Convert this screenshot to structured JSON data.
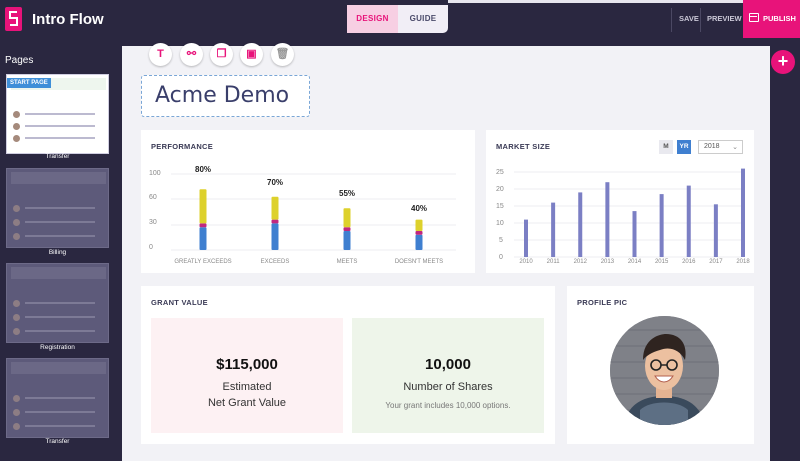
{
  "app": {
    "title": "Intro Flow",
    "mode_tabs": [
      "DESIGN",
      "GUIDE"
    ],
    "actions": {
      "save": "SAVE",
      "preview": "PREVIEW",
      "publish": "PUBLISH"
    },
    "accent_color": "#e8137a"
  },
  "sidebar": {
    "heading": "Pages",
    "start_badge": "START PAGE",
    "pages": [
      {
        "name": "Transfer",
        "active": true
      },
      {
        "name": "Billing",
        "active": false
      },
      {
        "name": "Registration",
        "active": false
      },
      {
        "name": "Transfer",
        "active": false
      }
    ]
  },
  "toolbar": {
    "icons": [
      "text-icon",
      "link-icon",
      "copy-icon",
      "add-image-icon",
      "trash-icon"
    ]
  },
  "canvas": {
    "title": "Acme Demo",
    "add_button": "+"
  },
  "performance": {
    "title": "PERFORMANCE",
    "y_ticks": [
      "100",
      "60",
      "30",
      "0"
    ],
    "categories": [
      "GREATLY EXCEEDS",
      "EXCEEDS",
      "MEETS",
      "DOESN'T MEETS"
    ],
    "labels": [
      "80%",
      "70%",
      "55%",
      "40%"
    ]
  },
  "market": {
    "title": "MARKET SIZE",
    "toggle": [
      "M",
      "YR"
    ],
    "year": "2018",
    "y_ticks": [
      "25",
      "20",
      "15",
      "10",
      "5",
      "0"
    ],
    "years": [
      "2010",
      "2011",
      "2012",
      "2013",
      "2014",
      "2015",
      "2016",
      "2017",
      "2018"
    ]
  },
  "grant": {
    "title": "GRANT VALUE",
    "left": {
      "value": "$115,000",
      "line1": "Estimated",
      "line2": "Net Grant Value"
    },
    "right": {
      "value": "10,000",
      "line1": "Number of Shares",
      "note": "Your grant includes 10,000 options."
    }
  },
  "profile": {
    "title": "PROFILE PIC"
  },
  "chart_data": [
    {
      "type": "bar",
      "title": "PERFORMANCE",
      "categories": [
        "GREATLY EXCEEDS",
        "EXCEEDS",
        "MEETS",
        "DOESN'T MEETS"
      ],
      "ylim": [
        0,
        100
      ],
      "series": [
        {
          "values": [
            30,
            35,
            25,
            20
          ],
          "color": "#3f7fd0"
        },
        {
          "values": [
            5,
            5,
            5,
            5
          ],
          "color": "#c0287f"
        },
        {
          "values": [
            45,
            30,
            25,
            15
          ],
          "color": "#ddd12c"
        }
      ],
      "data_labels": [
        "80%",
        "70%",
        "55%",
        "40%"
      ]
    },
    {
      "type": "bar",
      "title": "MARKET SIZE",
      "categories": [
        "2010",
        "2011",
        "2012",
        "2013",
        "2014",
        "2015",
        "2016",
        "2017",
        "2018"
      ],
      "values": [
        11,
        16,
        19,
        22,
        13.5,
        18.5,
        21,
        15.5,
        26
      ],
      "ylim": [
        0,
        25
      ],
      "color": "#7b7fc4"
    }
  ]
}
